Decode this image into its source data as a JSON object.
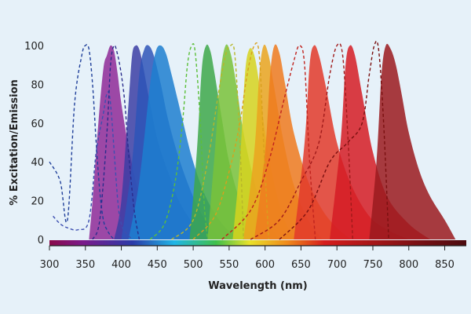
{
  "chart_data": {
    "type": "area",
    "title": "",
    "xlabel": "Wavelength (nm)",
    "ylabel": "% Excitation/Emission",
    "xlim": [
      300,
      880
    ],
    "ylim": [
      0,
      100
    ],
    "xticks": [
      300,
      350,
      400,
      450,
      500,
      550,
      600,
      650,
      700,
      750,
      800,
      850
    ],
    "yticks": [
      0,
      20,
      40,
      60,
      80,
      100
    ],
    "grid": false,
    "legend": "none",
    "series": [
      {
        "kind": "excitation",
        "color": "#1f3f9a",
        "x": [
          300,
          315,
          325,
          335,
          345,
          350,
          355,
          360,
          365,
          370,
          375,
          380,
          385,
          390
        ],
        "values": [
          40,
          30,
          10,
          70,
          95,
          100,
          98,
          80,
          50,
          25,
          10,
          5,
          2,
          0
        ]
      },
      {
        "kind": "emission",
        "color": "#8e2a98",
        "x": [
          355,
          360,
          368,
          375,
          380,
          385,
          390,
          395,
          400,
          410,
          420,
          430,
          445,
          460
        ],
        "values": [
          0,
          20,
          60,
          88,
          95,
          100,
          97,
          85,
          70,
          48,
          30,
          18,
          8,
          0
        ]
      },
      {
        "kind": "excitation",
        "color": "#3d4fb0",
        "x": [
          305,
          315,
          325,
          340,
          355,
          365,
          375,
          380,
          385,
          395,
          400,
          405,
          415
        ],
        "values": [
          12,
          8,
          6,
          5,
          10,
          45,
          65,
          75,
          70,
          20,
          8,
          4,
          0
        ]
      },
      {
        "kind": "excitation",
        "color": "#2a2c8c",
        "x": [
          360,
          370,
          380,
          385,
          390,
          395,
          400,
          405,
          410,
          418,
          425
        ],
        "values": [
          0,
          10,
          55,
          90,
          100,
          95,
          85,
          70,
          45,
          15,
          0
        ]
      },
      {
        "kind": "emission",
        "color": "#3b3ea5",
        "x": [
          390,
          400,
          410,
          415,
          420,
          425,
          430,
          440,
          450,
          460,
          470,
          480,
          500,
          520
        ],
        "values": [
          0,
          20,
          70,
          95,
          100,
          98,
          90,
          70,
          52,
          40,
          30,
          20,
          8,
          0
        ]
      },
      {
        "kind": "emission",
        "color": "#2e55b8",
        "x": [
          400,
          415,
          425,
          432,
          438,
          445,
          455,
          465,
          480,
          500,
          520,
          540
        ],
        "values": [
          0,
          40,
          85,
          98,
          100,
          95,
          80,
          62,
          42,
          22,
          8,
          0
        ]
      },
      {
        "kind": "emission",
        "color": "#1d7fd0",
        "x": [
          410,
          425,
          440,
          448,
          455,
          462,
          470,
          485,
          500,
          520,
          545,
          570
        ],
        "values": [
          0,
          30,
          80,
          97,
          100,
          96,
          85,
          62,
          40,
          20,
          6,
          0
        ]
      },
      {
        "kind": "excitation",
        "color": "#5cbf3a",
        "x": [
          440,
          460,
          475,
          485,
          492,
          498,
          503,
          510,
          515,
          520
        ],
        "values": [
          0,
          8,
          30,
          60,
          90,
          100,
          96,
          60,
          20,
          0
        ]
      },
      {
        "kind": "emission",
        "color": "#3da84a",
        "x": [
          495,
          505,
          512,
          518,
          524,
          530,
          540,
          550,
          565,
          580,
          600
        ],
        "values": [
          0,
          45,
          88,
          100,
          97,
          85,
          62,
          40,
          20,
          8,
          0
        ]
      },
      {
        "kind": "emission",
        "color": "#79c23a",
        "x": [
          520,
          530,
          538,
          545,
          552,
          560,
          570,
          585,
          600,
          620
        ],
        "values": [
          0,
          45,
          85,
          100,
          96,
          80,
          55,
          30,
          12,
          0
        ]
      },
      {
        "kind": "excitation",
        "color": "#b7b62a",
        "x": [
          470,
          500,
          520,
          535,
          545,
          552,
          558,
          565,
          570
        ],
        "values": [
          0,
          10,
          40,
          75,
          95,
          100,
          95,
          50,
          0
        ]
      },
      {
        "kind": "emission",
        "color": "#d6d31e",
        "x": [
          555,
          565,
          572,
          578,
          585,
          592,
          600,
          612,
          625,
          640
        ],
        "values": [
          0,
          40,
          85,
          98,
          95,
          80,
          55,
          30,
          12,
          0
        ]
      },
      {
        "kind": "excitation",
        "color": "#d9a01c",
        "x": [
          500,
          530,
          550,
          565,
          575,
          585,
          592,
          598,
          605
        ],
        "values": [
          0,
          12,
          35,
          60,
          85,
          100,
          95,
          50,
          0
        ]
      },
      {
        "kind": "emission",
        "color": "#eaa51e",
        "x": [
          570,
          585,
          592,
          598,
          605,
          612,
          625,
          640,
          660,
          680
        ],
        "values": [
          0,
          45,
          85,
          100,
          95,
          80,
          52,
          28,
          10,
          0
        ]
      },
      {
        "kind": "emission",
        "color": "#ee7a1f",
        "x": [
          585,
          600,
          607,
          613,
          620,
          628,
          640,
          660,
          680,
          700,
          720
        ],
        "values": [
          0,
          45,
          85,
          100,
          96,
          80,
          55,
          30,
          15,
          6,
          0
        ]
      },
      {
        "kind": "excitation",
        "color": "#c0231e",
        "x": [
          540,
          580,
          605,
          625,
          640,
          648,
          655,
          662,
          670
        ],
        "values": [
          0,
          15,
          40,
          70,
          92,
          100,
          90,
          40,
          0
        ]
      },
      {
        "kind": "emission",
        "color": "#e23a2a",
        "x": [
          640,
          655,
          662,
          668,
          675,
          685,
          700,
          720,
          745,
          770,
          800
        ],
        "values": [
          0,
          50,
          90,
          100,
          95,
          78,
          50,
          28,
          12,
          5,
          0
        ]
      },
      {
        "kind": "excitation",
        "color": "#a01a1a",
        "x": [
          580,
          620,
          650,
          675,
          690,
          700,
          708,
          715,
          722
        ],
        "values": [
          0,
          10,
          30,
          50,
          85,
          100,
          95,
          55,
          0
        ]
      },
      {
        "kind": "emission",
        "color": "#d51c25",
        "x": [
          690,
          705,
          712,
          718,
          725,
          735,
          750,
          770,
          800,
          830
        ],
        "values": [
          0,
          50,
          90,
          100,
          95,
          75,
          45,
          22,
          8,
          0
        ]
      },
      {
        "kind": "excitation",
        "color": "#7a1010",
        "x": [
          620,
          660,
          690,
          715,
          735,
          745,
          752,
          758,
          765,
          772
        ],
        "values": [
          0,
          15,
          40,
          50,
          60,
          85,
          100,
          98,
          60,
          0
        ]
      },
      {
        "kind": "emission",
        "color": "#9a1a1e",
        "x": [
          745,
          755,
          762,
          768,
          775,
          782,
          790,
          800,
          815,
          830,
          850,
          865
        ],
        "values": [
          0,
          40,
          85,
          100,
          98,
          90,
          75,
          55,
          35,
          22,
          10,
          0
        ]
      }
    ]
  }
}
